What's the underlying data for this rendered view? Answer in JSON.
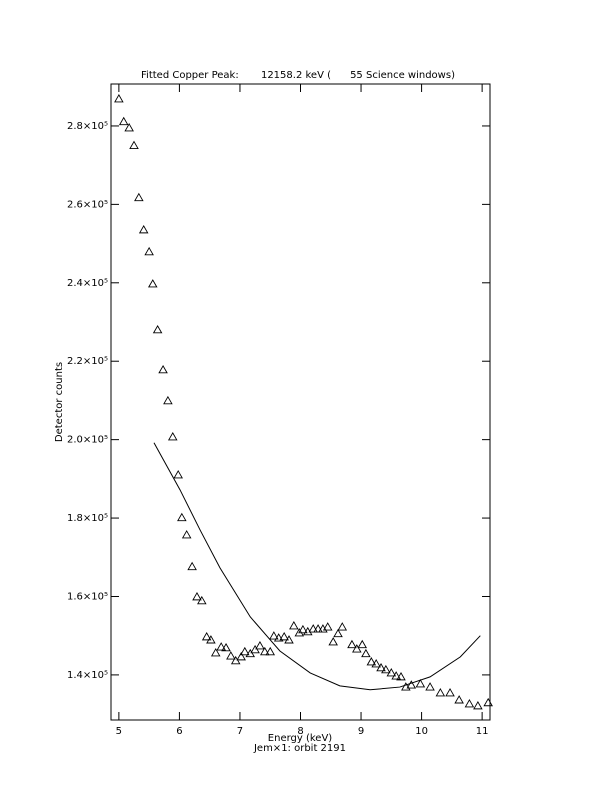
{
  "chart_data": {
    "type": "scatter",
    "title": "Fitted Copper Peak:       12158.2 keV (      55 Science windows)",
    "xlabel": "Energy (keV)",
    "ylabel": "Detector counts",
    "footer": "Jem×1: orbit 2191",
    "xlim": [
      4.87,
      11.13
    ],
    "ylim": [
      128500,
      290700
    ],
    "xticks": [
      5,
      6,
      7,
      8,
      9,
      10,
      11
    ],
    "yticks": [
      {
        "value": 140000,
        "label": "1.4×10⁵"
      },
      {
        "value": 160000,
        "label": "1.6×10⁵"
      },
      {
        "value": 180000,
        "label": "1.8×10⁵"
      },
      {
        "value": 200000,
        "label": "2.0×10⁵"
      },
      {
        "value": 220000,
        "label": "2.2×10⁵"
      },
      {
        "value": 240000,
        "label": "2.4×10⁵"
      },
      {
        "value": 260000,
        "label": "2.6×10⁵"
      },
      {
        "value": 280000,
        "label": "2.8×10⁵"
      }
    ],
    "color": "#000000",
    "series": [
      {
        "type": "scatter",
        "marker": "triangle",
        "x": [
          5.0,
          5.08,
          5.17,
          5.25,
          5.33,
          5.41,
          5.5,
          5.56,
          5.64,
          5.73,
          5.81,
          5.89,
          5.98,
          6.04,
          6.12,
          6.21,
          6.29,
          6.37,
          6.45,
          6.52,
          6.6,
          6.69,
          6.77,
          6.85,
          6.93,
          7.02,
          7.08,
          7.17,
          7.25,
          7.33,
          7.41,
          7.5,
          7.56,
          7.64,
          7.73,
          7.81,
          7.89,
          7.98,
          8.04,
          8.12,
          8.21,
          8.29,
          8.37,
          8.45,
          8.54,
          8.62,
          8.69,
          8.85,
          8.93,
          9.02,
          9.08,
          9.17,
          9.25,
          9.33,
          9.41,
          9.5,
          9.58,
          9.66,
          9.74,
          9.83,
          9.98,
          10.14,
          10.31,
          10.47,
          10.62,
          10.79,
          10.93,
          11.1
        ],
        "values": [
          286900,
          281100,
          279500,
          275000,
          261700,
          253500,
          247900,
          239700,
          228000,
          217800,
          209900,
          200700,
          191000,
          180100,
          175700,
          167600,
          159900,
          158900,
          149700,
          148900,
          145600,
          147100,
          146900,
          144800,
          143600,
          144600,
          145900,
          145400,
          146400,
          147400,
          145900,
          145900,
          149900,
          149400,
          149700,
          148900,
          152500,
          150700,
          151500,
          151000,
          151700,
          151700,
          151700,
          152200,
          148400,
          150500,
          152200,
          147700,
          146600,
          147700,
          145400,
          143300,
          142800,
          141800,
          141300,
          140500,
          139700,
          139500,
          136900,
          137400,
          137700,
          136900,
          135400,
          135400,
          133600,
          132600,
          132100,
          132900
        ]
      },
      {
        "type": "line",
        "x": [
          5.58,
          6.01,
          6.34,
          6.67,
          7.17,
          7.66,
          8.16,
          8.65,
          9.15,
          9.64,
          10.14,
          10.64,
          10.97
        ],
        "values": [
          199200,
          187200,
          177000,
          167300,
          154800,
          146100,
          140500,
          137200,
          136200,
          136900,
          139500,
          144600,
          150000
        ]
      }
    ]
  }
}
